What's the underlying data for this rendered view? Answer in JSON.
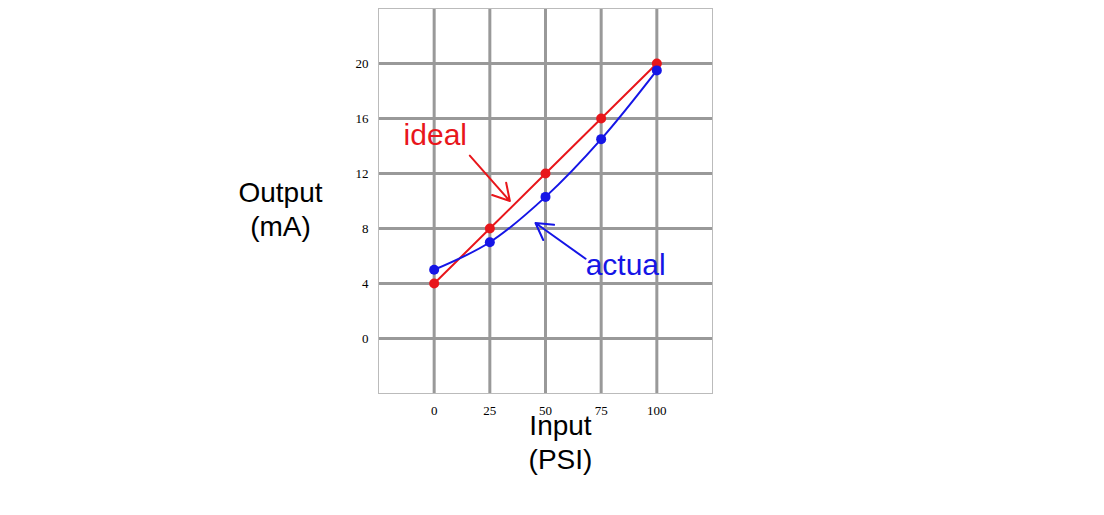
{
  "chart_data": {
    "type": "line",
    "x_label": "Input (PSI)",
    "y_label": "Output (mA)",
    "x": [
      0,
      25,
      50,
      75,
      100
    ],
    "series": [
      {
        "name": "ideal",
        "color": "#e8161b",
        "values": [
          4,
          8,
          12,
          16,
          20
        ],
        "marker": "circle",
        "line_style": "solid",
        "label": {
          "x": 0.5,
          "y": 14.8,
          "arrow_from": [
            16,
            13.3
          ],
          "arrow_to": [
            34,
            10
          ]
        }
      },
      {
        "name": "actual",
        "color": "#1515e6",
        "values": [
          5,
          7,
          10.3,
          14.5,
          19.5
        ],
        "marker": "circle",
        "line_style": "curved",
        "label": {
          "x": 86,
          "y": 5.3,
          "arrow_from": [
            68,
            5.8
          ],
          "arrow_to": [
            45.5,
            8.4
          ]
        }
      }
    ],
    "xlim": [
      -25,
      125
    ],
    "ylim": [
      -4,
      24
    ],
    "xticks": [
      0,
      25,
      50,
      75,
      100
    ],
    "yticks": [
      0,
      4,
      8,
      12,
      16,
      20
    ],
    "grid": true
  }
}
